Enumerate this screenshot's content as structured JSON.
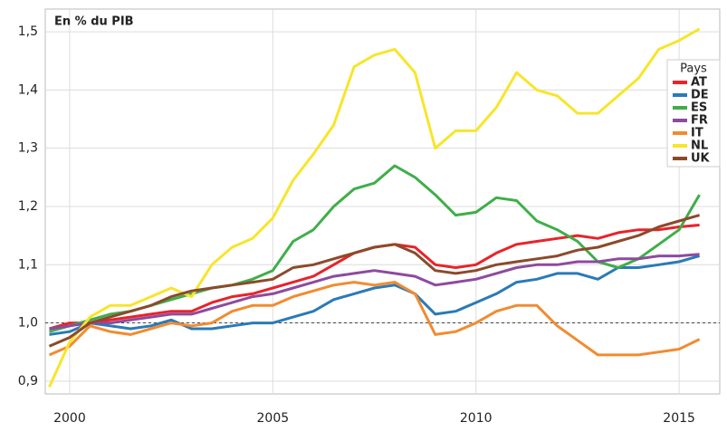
{
  "chart_data": {
    "type": "line",
    "title": "En % du PIB",
    "legend_title": "Pays",
    "legend_position": "top-right",
    "grid": true,
    "reference_line": 1,
    "x": [
      1999.5,
      2000,
      2000.5,
      2001,
      2001.5,
      2002,
      2002.5,
      2003,
      2003.5,
      2004,
      2004.5,
      2005,
      2005.5,
      2006,
      2006.5,
      2007,
      2007.5,
      2008,
      2008.5,
      2009,
      2009.5,
      2010,
      2010.5,
      2011,
      2011.5,
      2012,
      2012.5,
      2013,
      2013.5,
      2014,
      2014.5,
      2015,
      2015.5
    ],
    "xlim": [
      1999.4,
      2016.0
    ],
    "xticks": [
      2000,
      2005,
      2010,
      2015
    ],
    "ylim": [
      0.878,
      1.539
    ],
    "yticks": [
      {
        "value": 0.9,
        "label": "0,9"
      },
      {
        "value": 1.0,
        "label": "1,0"
      },
      {
        "value": 1.1,
        "label": "1,1"
      },
      {
        "value": 1.2,
        "label": "1,2"
      },
      {
        "value": 1.3,
        "label": "1,3"
      },
      {
        "value": 1.4,
        "label": "1,4"
      },
      {
        "value": 1.5,
        "label": "1,5"
      }
    ],
    "series": [
      {
        "name": "AT",
        "color": "#e8232a",
        "values": [
          0.99,
          1.0,
          1.0,
          1.005,
          1.01,
          1.015,
          1.02,
          1.02,
          1.035,
          1.045,
          1.05,
          1.06,
          1.07,
          1.08,
          1.1,
          1.12,
          1.13,
          1.135,
          1.13,
          1.1,
          1.095,
          1.1,
          1.12,
          1.135,
          1.14,
          1.145,
          1.15,
          1.145,
          1.155,
          1.16,
          1.16,
          1.165,
          1.168
        ]
      },
      {
        "name": "DE",
        "color": "#2a7ab8",
        "values": [
          0.98,
          0.985,
          1.0,
          0.995,
          0.99,
          0.995,
          1.005,
          0.99,
          0.99,
          0.995,
          1.0,
          1.0,
          1.01,
          1.02,
          1.04,
          1.05,
          1.06,
          1.065,
          1.05,
          1.015,
          1.02,
          1.035,
          1.05,
          1.07,
          1.075,
          1.085,
          1.085,
          1.075,
          1.095,
          1.095,
          1.1,
          1.105,
          1.115
        ]
      },
      {
        "name": "ES",
        "color": "#3fae49",
        "values": [
          0.985,
          0.995,
          1.005,
          1.015,
          1.02,
          1.03,
          1.04,
          1.05,
          1.06,
          1.065,
          1.075,
          1.09,
          1.14,
          1.16,
          1.2,
          1.23,
          1.24,
          1.27,
          1.25,
          1.22,
          1.185,
          1.19,
          1.215,
          1.21,
          1.175,
          1.16,
          1.14,
          1.105,
          1.095,
          1.11,
          1.135,
          1.16,
          1.22
        ]
      },
      {
        "name": "FR",
        "color": "#8e4a9e",
        "values": [
          0.99,
          0.995,
          1.0,
          1.0,
          1.005,
          1.01,
          1.015,
          1.015,
          1.025,
          1.035,
          1.045,
          1.05,
          1.06,
          1.07,
          1.08,
          1.085,
          1.09,
          1.085,
          1.08,
          1.065,
          1.07,
          1.075,
          1.085,
          1.095,
          1.1,
          1.1,
          1.105,
          1.105,
          1.11,
          1.11,
          1.115,
          1.115,
          1.118
        ]
      },
      {
        "name": "IT",
        "color": "#f28b30",
        "values": [
          0.945,
          0.96,
          0.995,
          0.985,
          0.98,
          0.99,
          1.0,
          0.995,
          1.0,
          1.02,
          1.03,
          1.03,
          1.045,
          1.055,
          1.065,
          1.07,
          1.065,
          1.07,
          1.05,
          0.98,
          0.985,
          1.0,
          1.02,
          1.03,
          1.03,
          0.995,
          0.97,
          0.945,
          0.945,
          0.945,
          0.95,
          0.955,
          0.972
        ]
      },
      {
        "name": "NL",
        "color": "#f7e52b",
        "values": [
          0.89,
          0.967,
          1.01,
          1.03,
          1.03,
          1.045,
          1.06,
          1.045,
          1.1,
          1.13,
          1.145,
          1.18,
          1.245,
          1.29,
          1.34,
          1.44,
          1.46,
          1.47,
          1.43,
          1.3,
          1.33,
          1.33,
          1.37,
          1.43,
          1.4,
          1.39,
          1.36,
          1.36,
          1.39,
          1.42,
          1.47,
          1.485,
          1.505
        ]
      },
      {
        "name": "UK",
        "color": "#8b4a2b",
        "values": [
          0.96,
          0.975,
          1.0,
          1.01,
          1.02,
          1.03,
          1.045,
          1.055,
          1.06,
          1.065,
          1.07,
          1.075,
          1.095,
          1.1,
          1.11,
          1.12,
          1.13,
          1.135,
          1.12,
          1.09,
          1.085,
          1.09,
          1.1,
          1.105,
          1.11,
          1.115,
          1.125,
          1.13,
          1.14,
          1.15,
          1.165,
          1.175,
          1.185
        ]
      }
    ]
  }
}
